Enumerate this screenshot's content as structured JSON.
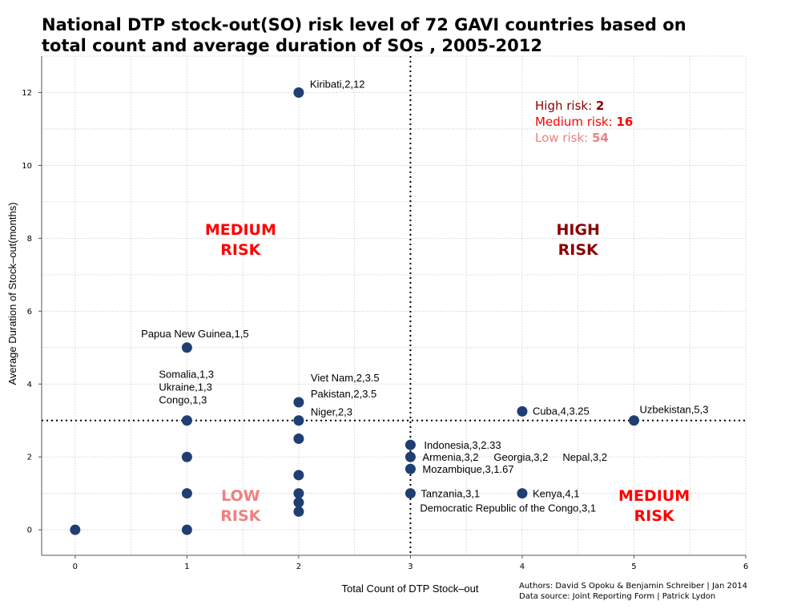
{
  "title_lines": [
    "National DTP stock-out(SO) risk level of 72 GAVI countries based on",
    "total count and average duration of SOs , 2005-2012"
  ],
  "footer": {
    "authors": "Authors: David S Opoku & Benjamin Schreiber | Jan 2014",
    "source": "Data source: Joint Reporting Form | Patrick Lydon"
  },
  "colors": {
    "point": "#1f3f73",
    "high": "#8b0000",
    "medium": "#ff0000",
    "low": "#f08080",
    "grid": "#c8c8c8"
  },
  "chart_data": {
    "type": "scatter",
    "xlabel": "Total Count of DTP Stock–out",
    "ylabel": "Average Duration of Stock–out(months)",
    "xlim": [
      -0.3,
      6
    ],
    "ylim": [
      -0.7,
      13
    ],
    "xticks": [
      0,
      1,
      2,
      3,
      4,
      5,
      6
    ],
    "yticks": [
      0,
      2,
      4,
      6,
      8,
      10,
      12
    ],
    "grid": true,
    "thresholds": {
      "x": 3,
      "y": 3
    },
    "points": [
      {
        "x": 0,
        "y": 0
      },
      {
        "x": 1,
        "y": 0
      },
      {
        "x": 1,
        "y": 1
      },
      {
        "x": 1,
        "y": 2
      },
      {
        "x": 1,
        "y": 3
      },
      {
        "x": 1,
        "y": 5
      },
      {
        "x": 2,
        "y": 0.5
      },
      {
        "x": 2,
        "y": 0.75
      },
      {
        "x": 2,
        "y": 1
      },
      {
        "x": 2,
        "y": 1.5
      },
      {
        "x": 2,
        "y": 2.5
      },
      {
        "x": 2,
        "y": 3
      },
      {
        "x": 2,
        "y": 3.5
      },
      {
        "x": 2,
        "y": 12
      },
      {
        "x": 3,
        "y": 1
      },
      {
        "x": 3,
        "y": 1.67
      },
      {
        "x": 3,
        "y": 2
      },
      {
        "x": 3,
        "y": 2.33
      },
      {
        "x": 4,
        "y": 1
      },
      {
        "x": 4,
        "y": 3.25
      },
      {
        "x": 5,
        "y": 3
      }
    ],
    "point_labels": [
      {
        "text": "Kiribati,2,12",
        "x": 2,
        "y": 12,
        "dx": 14,
        "dy": -6,
        "anchor": "start"
      },
      {
        "text": "Papua New Guinea,1,5",
        "x": 1,
        "y": 5,
        "dx": 10,
        "dy": -13,
        "anchor": "middle"
      },
      {
        "text": "Somalia,1,3",
        "x": 1,
        "y": 3,
        "dx": -35,
        "dy": -53,
        "anchor": "start"
      },
      {
        "text": "Ukraine,1,3",
        "x": 1,
        "y": 3,
        "dx": -35,
        "dy": -37,
        "anchor": "start"
      },
      {
        "text": "Congo,1,3",
        "x": 1,
        "y": 3,
        "dx": -35,
        "dy": -21,
        "anchor": "start"
      },
      {
        "text": "Viet Nam,2,3.5",
        "x": 2,
        "y": 3.5,
        "dx": 15,
        "dy": -26,
        "anchor": "start"
      },
      {
        "text": "Pakistan,2,3.5",
        "x": 2,
        "y": 3.5,
        "dx": 15,
        "dy": -6,
        "anchor": "start"
      },
      {
        "text": "Niger,2,3",
        "x": 2,
        "y": 3,
        "dx": 15,
        "dy": -6,
        "anchor": "start"
      },
      {
        "text": "Indonesia,3,2.33",
        "x": 3,
        "y": 2.33,
        "dx": 17,
        "dy": 5,
        "anchor": "start"
      },
      {
        "text": "Armenia,3,2",
        "x": 3,
        "y": 2,
        "dx": 15,
        "dy": 5,
        "anchor": "start"
      },
      {
        "text": "Georgia,3,2",
        "x": 3,
        "y": 2,
        "dx": 104,
        "dy": 5,
        "anchor": "start"
      },
      {
        "text": "Nepal,3,2",
        "x": 3,
        "y": 2,
        "dx": 190,
        "dy": 5,
        "anchor": "start"
      },
      {
        "text": "Mozambique,3,1.67",
        "x": 3,
        "y": 1.67,
        "dx": 15,
        "dy": 5,
        "anchor": "start"
      },
      {
        "text": "Tanzania,3,1",
        "x": 3,
        "y": 1,
        "dx": 13,
        "dy": 5,
        "anchor": "start"
      },
      {
        "text": "Democratic Republic of the Congo,3,1",
        "x": 3,
        "y": 1,
        "dx": 12,
        "dy": 23,
        "anchor": "start"
      },
      {
        "text": "Kenya,4,1",
        "x": 4,
        "y": 1,
        "dx": 13,
        "dy": 5,
        "anchor": "start"
      },
      {
        "text": "Cuba,4,3.25",
        "x": 4,
        "y": 3.25,
        "dx": 13,
        "dy": 4,
        "anchor": "start"
      },
      {
        "text": "Uzbekistan,5,3",
        "x": 5,
        "y": 3,
        "dx": 7,
        "dy": -9,
        "anchor": "start"
      }
    ],
    "quadrant_labels": [
      {
        "lines": [
          "MEDIUM",
          "RISK"
        ],
        "x": 1.48,
        "y": 8.1,
        "level": "medium"
      },
      {
        "lines": [
          "HIGH",
          "RISK"
        ],
        "x": 4.5,
        "y": 8.1,
        "level": "high"
      },
      {
        "lines": [
          "LOW",
          "RISK"
        ],
        "x": 1.48,
        "y": 0.8,
        "level": "low"
      },
      {
        "lines": [
          "MEDIUM",
          "RISK"
        ],
        "x": 5.18,
        "y": 0.8,
        "level": "medium"
      }
    ],
    "legend": [
      {
        "label": "High risk: ",
        "value": "2",
        "level": "high"
      },
      {
        "label": "Medium risk: ",
        "value": "16",
        "level": "medium"
      },
      {
        "label": "Low risk: ",
        "value": "54",
        "level": "low"
      }
    ]
  }
}
